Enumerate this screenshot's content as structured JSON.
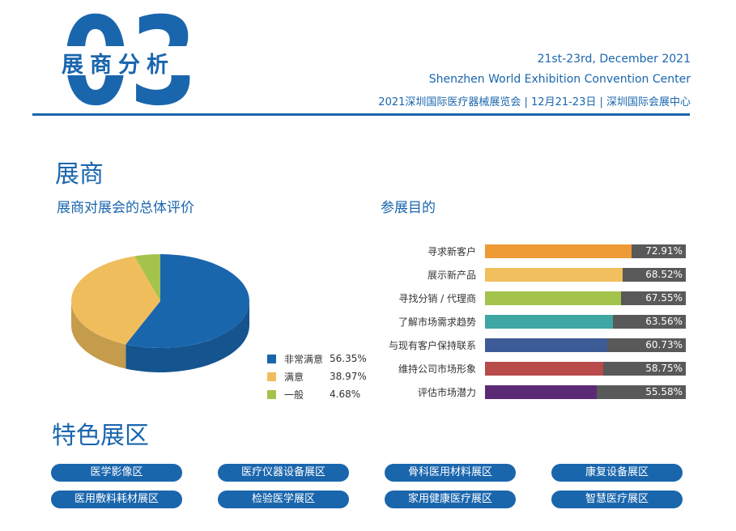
{
  "header": {
    "number": "03",
    "title": "展商分析",
    "date": "21st-23rd, December 2021",
    "venue": "Shenzhen World Exhibition Convention Center",
    "event": "2021深圳国际医疗器械展览会 | 12月21-23日 | 深圳国际会展中心"
  },
  "exhibitors": {
    "title": "展商",
    "satisfaction_title": "展商对展会的总体评价",
    "purpose_title": "参展目的"
  },
  "colors": {
    "brand_blue": "#1a66ad",
    "bar_track": "#595959"
  },
  "chart_data": [
    {
      "type": "pie",
      "title": "展商对展会的总体评价",
      "labels": [
        "非常满意",
        "满意",
        "一般"
      ],
      "values": [
        56.35,
        38.97,
        4.68
      ],
      "value_labels": [
        "56.35%",
        "38.97%",
        "4.68%"
      ],
      "colors": [
        "#1a66ad",
        "#f0bd5d",
        "#a3c34c"
      ],
      "legend": "bottom-right"
    },
    {
      "type": "bar",
      "title": "参展目的",
      "orientation": "horizontal",
      "categories": [
        "寻求新客户",
        "展示新产品",
        "寻找分销 / 代理商",
        "了解市场需求趋势",
        "与现有客户保持联系",
        "维持公司市场形象",
        "评估市场潜力"
      ],
      "values": [
        72.91,
        68.52,
        67.55,
        63.56,
        60.73,
        58.75,
        55.58
      ],
      "value_labels": [
        "72.91%",
        "68.52%",
        "67.55%",
        "63.56%",
        "60.73%",
        "58.75%",
        "55.58%"
      ],
      "colors": [
        "#ee9a35",
        "#f2bf5e",
        "#a3c34c",
        "#3ea6a3",
        "#3d5b97",
        "#b94a4a",
        "#5b2a75"
      ],
      "xlim": [
        0,
        100
      ]
    }
  ],
  "features": {
    "title": "特色展区",
    "zones": [
      "医学影像区",
      "医疗仪器设备展区",
      "骨科医用材料展区",
      "康复设备展区",
      "医用敷料耗材展区",
      "检验医学展区",
      "家用健康医疗展区",
      "智慧医疗展区"
    ]
  }
}
